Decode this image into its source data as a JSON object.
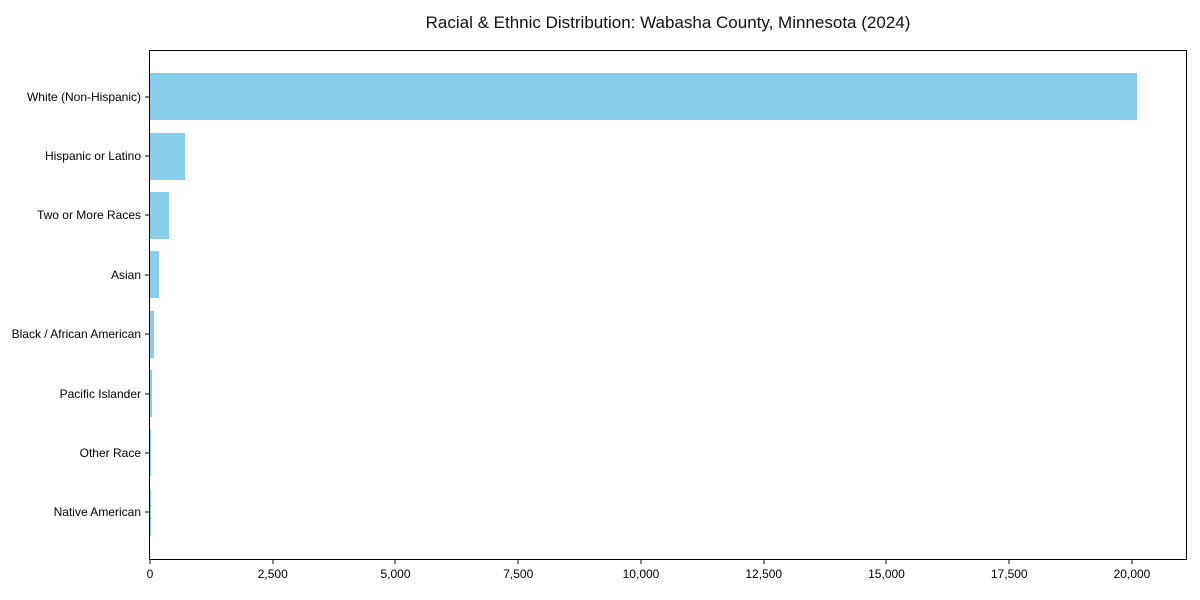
{
  "chart_data": {
    "type": "bar",
    "orientation": "horizontal",
    "title": "Racial & Ethnic Distribution: Wabasha County, Minnesota (2024)",
    "categories": [
      "White (Non-Hispanic)",
      "Hispanic or Latino",
      "Two or More Races",
      "Asian",
      "Black / African American",
      "Pacific Islander",
      "Other Race",
      "Native American"
    ],
    "values": [
      20100,
      720,
      380,
      175,
      80,
      45,
      18,
      10
    ],
    "bar_color": "#87CEEB",
    "xlabel": "",
    "ylabel": "",
    "xlim": [
      0,
      21100
    ],
    "x_ticks": [
      {
        "value": 0,
        "label": "0"
      },
      {
        "value": 2500,
        "label": "2,500"
      },
      {
        "value": 5000,
        "label": "5,000"
      },
      {
        "value": 7500,
        "label": "7,500"
      },
      {
        "value": 10000,
        "label": "10,000"
      },
      {
        "value": 12500,
        "label": "12,500"
      },
      {
        "value": 15000,
        "label": "15,000"
      },
      {
        "value": 17500,
        "label": "17,500"
      },
      {
        "value": 20000,
        "label": "20,000"
      }
    ],
    "grid": false,
    "legend": null
  }
}
